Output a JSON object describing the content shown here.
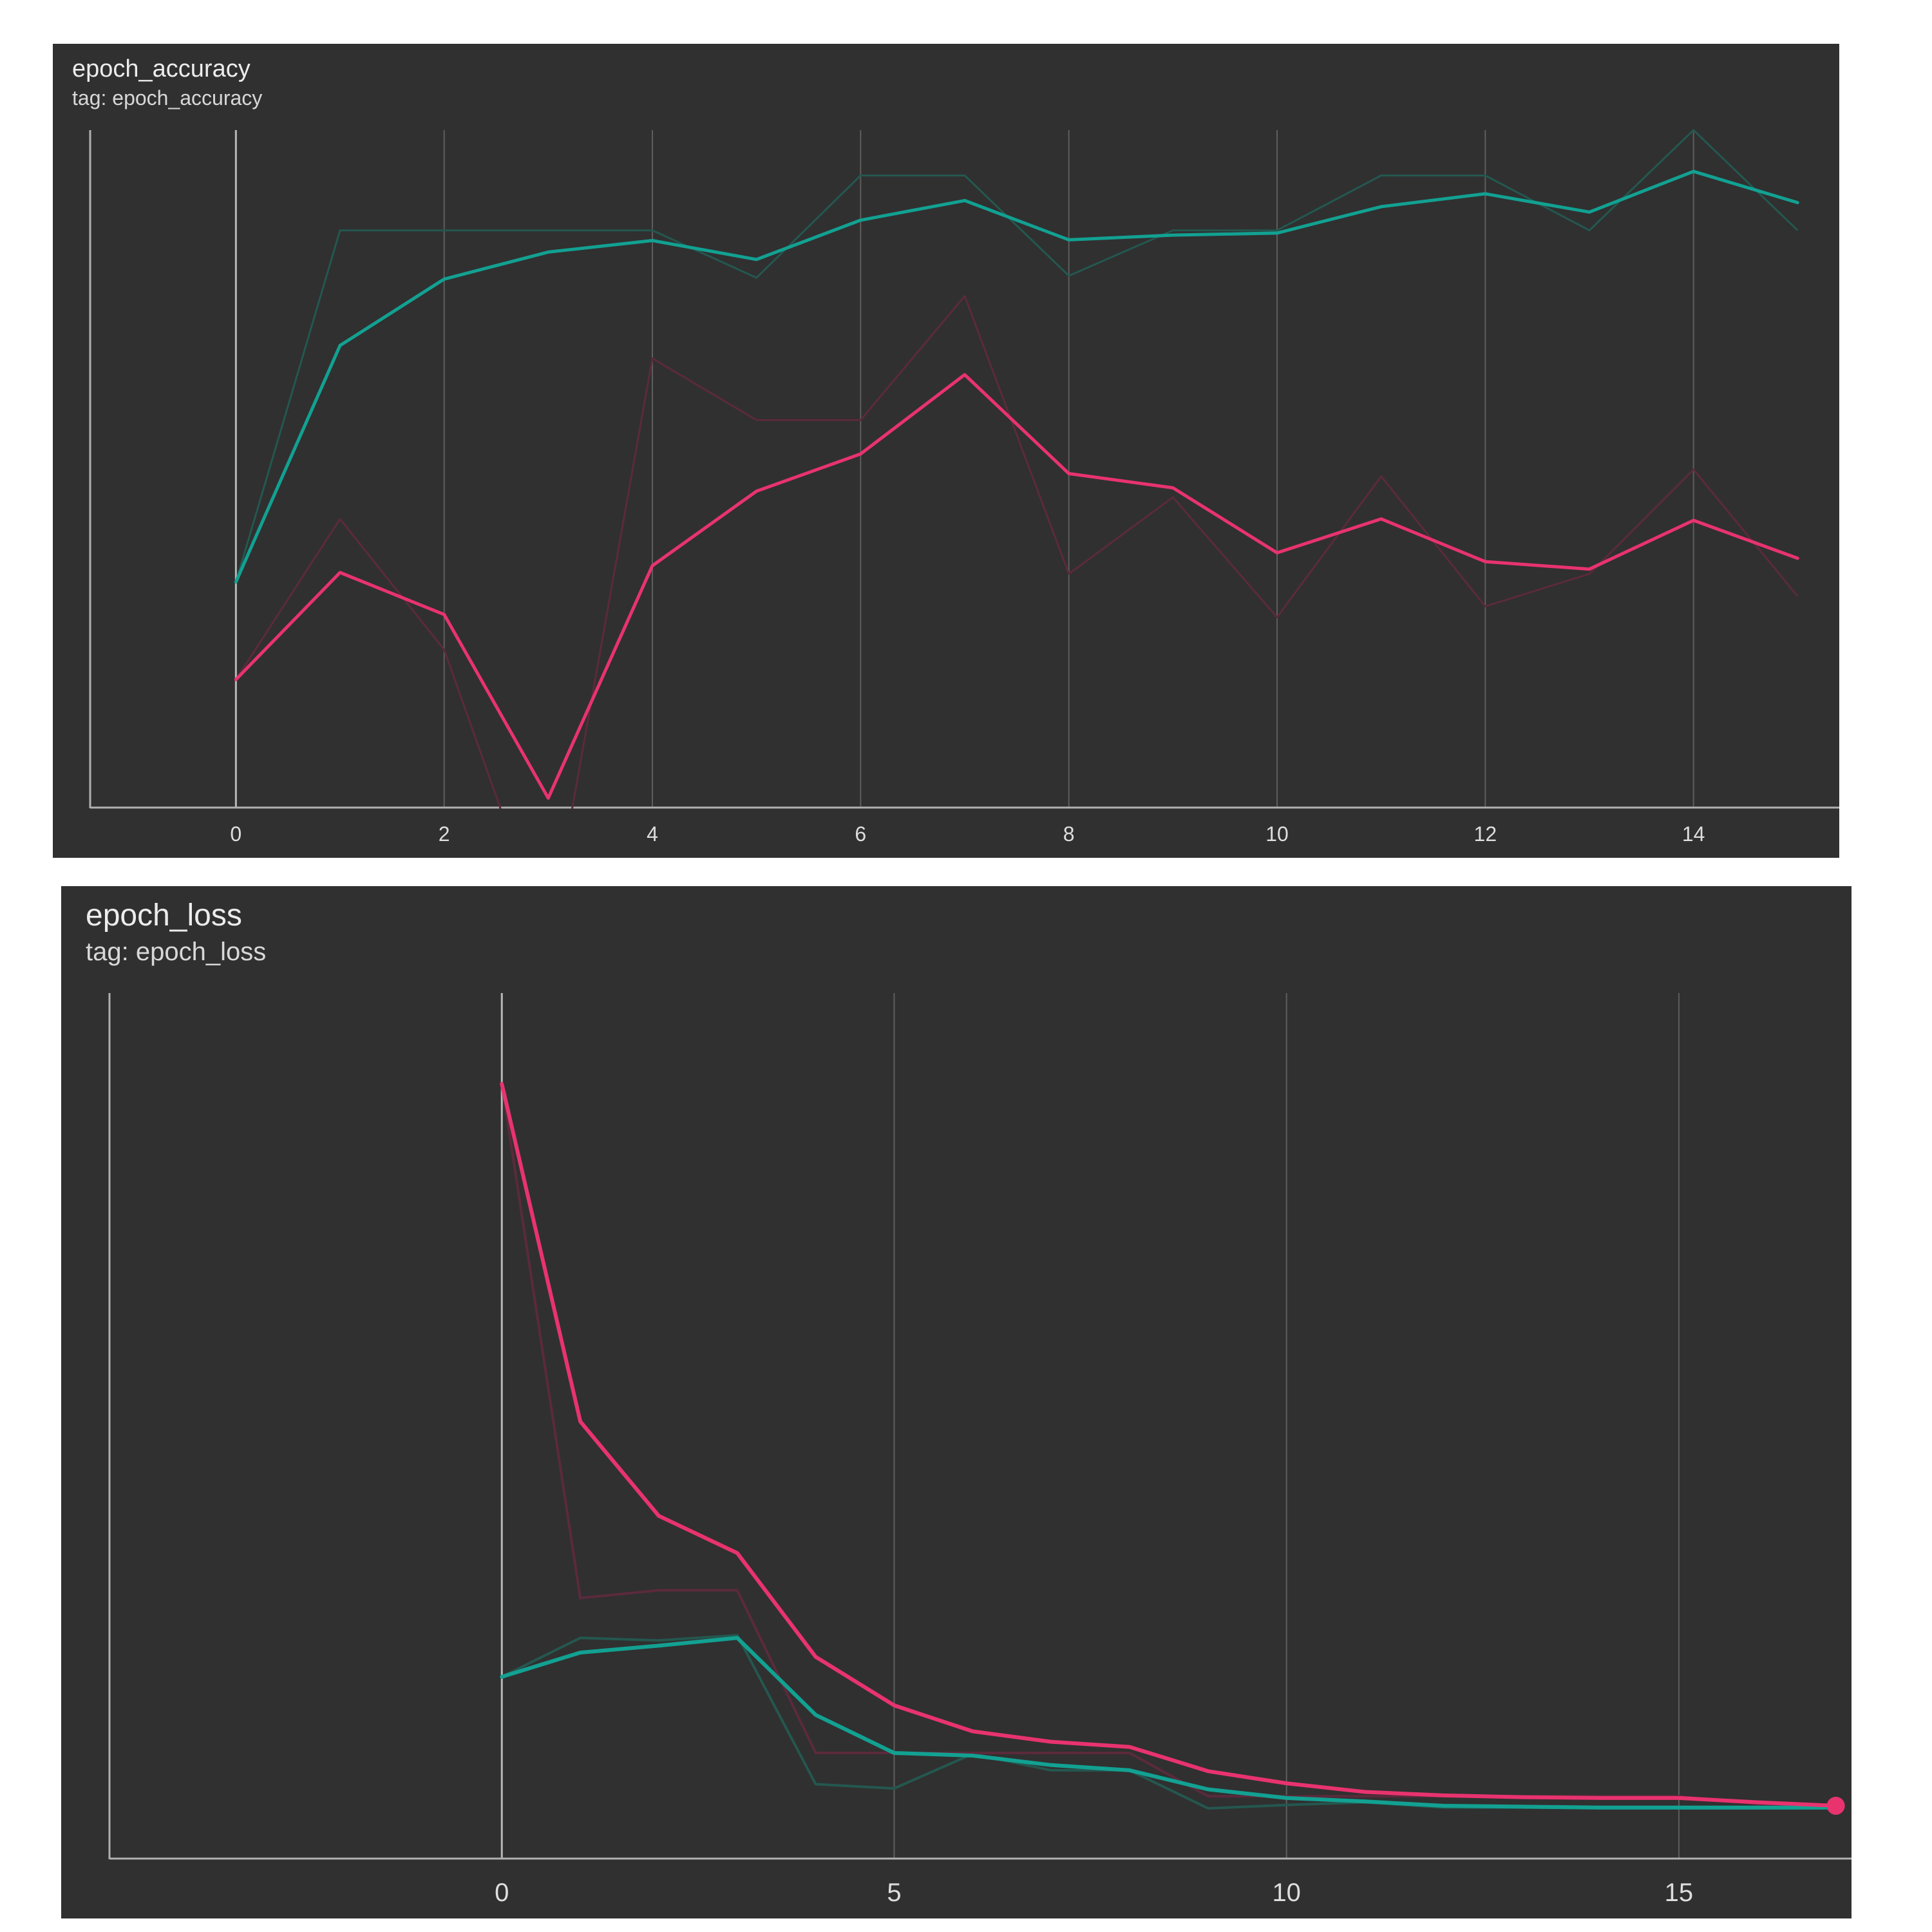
{
  "chart_data": [
    {
      "type": "line",
      "title": "epoch_accuracy",
      "subtitle": "tag: epoch_accuracy",
      "xlim": [
        -1.4,
        15.4
      ],
      "ylim": [
        0,
        100
      ],
      "x_ticks": [
        0,
        2,
        4,
        6,
        8,
        10,
        12,
        14
      ],
      "grid": true,
      "series": [
        {
          "color": "#12a192",
          "raw_color": "#24574f",
          "x": [
            0,
            1,
            2,
            3,
            4,
            5,
            6,
            7,
            8,
            9,
            10,
            11,
            12,
            13,
            14,
            15
          ],
          "smoothed": [
            33.3,
            68.2,
            78,
            82,
            83.7,
            80.9,
            86.7,
            89.6,
            83.8,
            84.5,
            84.8,
            88.7,
            90.6,
            87.9,
            93.9,
            89.3
          ],
          "raw": [
            33.3,
            85.2,
            85.2,
            85.2,
            85.2,
            78.2,
            93.3,
            93.3,
            78.5,
            85.2,
            85.2,
            93.3,
            93.3,
            85.2,
            100,
            85.2
          ]
        },
        {
          "color": "#e8336f",
          "raw_color": "#5b2a3c",
          "x": [
            0,
            1,
            2,
            3,
            4,
            5,
            6,
            7,
            8,
            9,
            10,
            11,
            12,
            13,
            14,
            15
          ],
          "smoothed": [
            18.9,
            34.7,
            28.5,
            1.4,
            35.7,
            46.7,
            52.2,
            63.9,
            49.3,
            47.2,
            37.6,
            42.6,
            36.3,
            35.2,
            42.4,
            36.8
          ],
          "raw": [
            18.9,
            42.6,
            23.3,
            -20,
            66.3,
            57.2,
            57.2,
            75.5,
            34.5,
            45.8,
            28.1,
            48.9,
            29.7,
            34.5,
            49.9,
            31.2
          ]
        }
      ]
    },
    {
      "type": "line",
      "title": "epoch_loss",
      "subtitle": "tag: epoch_loss",
      "xlim": [
        -5,
        17.2
      ],
      "ylim": [
        0,
        100
      ],
      "x_ticks": [
        0,
        5,
        10,
        15
      ],
      "grid": true,
      "series": [
        {
          "color": "#12a192",
          "raw_color": "#24574f",
          "x": [
            0,
            1,
            2,
            3,
            4,
            5,
            6,
            7,
            8,
            9,
            10,
            11,
            12,
            13,
            14,
            15,
            16,
            17
          ],
          "smoothed": [
            21,
            23.8,
            24.6,
            25.5,
            16.6,
            12.2,
            11.9,
            10.8,
            10.2,
            8,
            7,
            6.6,
            6.1,
            6,
            5.9,
            5.9,
            5.9,
            5.9
          ],
          "raw": [
            21,
            25.5,
            25.2,
            25.8,
            8.6,
            8.1,
            12.1,
            10.2,
            10.2,
            5.8,
            6.2,
            6.5,
            5.9,
            5.9,
            5.8,
            5.8,
            5.8,
            5.8
          ]
        },
        {
          "color": "#e8336f",
          "raw_color": "#5b2a3c",
          "x": [
            0,
            1,
            2,
            3,
            4,
            5,
            6,
            7,
            8,
            9,
            10,
            11,
            12,
            13,
            14,
            15,
            16,
            17
          ],
          "smoothed": [
            89.5,
            50.5,
            39.6,
            35.3,
            23.3,
            17.7,
            14.7,
            13.5,
            12.9,
            10.1,
            8.7,
            7.7,
            7.3,
            7.1,
            7,
            7,
            6.5,
            6.1
          ],
          "raw": [
            89.5,
            30.1,
            31,
            31,
            12.2,
            12.2,
            12.2,
            12.2,
            12.2,
            7.2,
            7.2,
            7.2,
            7.2,
            7.2,
            7.2,
            7.2,
            6.3,
            6.1
          ]
        }
      ]
    }
  ]
}
